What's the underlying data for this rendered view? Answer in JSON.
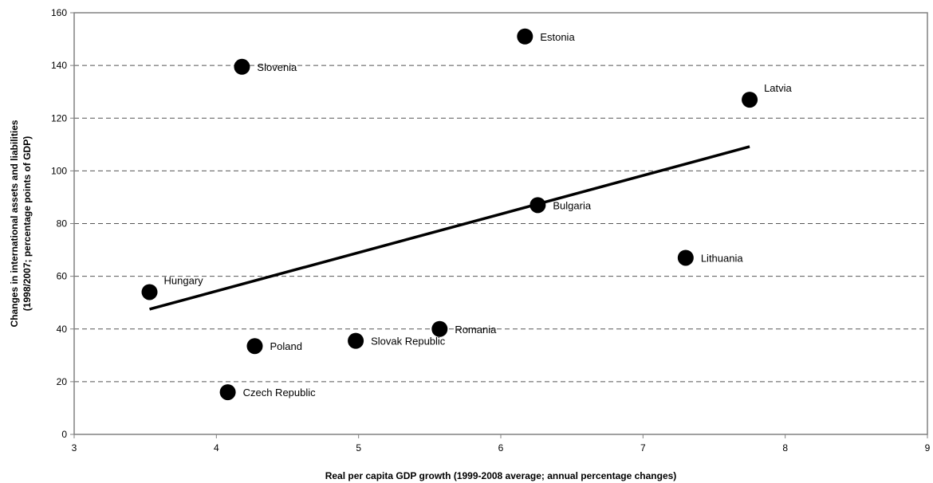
{
  "chart_data": {
    "type": "scatter",
    "title": "",
    "xlabel": "Real per capita GDP growth (1999-2008 average; annual percentage changes)",
    "ylabel_lines": [
      "Changes in international assets and liabilities",
      "(1998/2007; percentage points of GDP)"
    ],
    "xlim": [
      3,
      9
    ],
    "ylim": [
      0,
      160
    ],
    "xticks": [
      3,
      4,
      5,
      6,
      7,
      8,
      9
    ],
    "yticks": [
      0,
      20,
      40,
      60,
      80,
      100,
      120,
      140,
      160
    ],
    "grid": "horizontal-dashed",
    "colors": {
      "points": "#000000",
      "trend": "#000000",
      "grid": "#555555",
      "axis": "#808080"
    },
    "points": [
      {
        "name": "Hungary",
        "x": 3.53,
        "y": 54,
        "label_pos": "upper-right"
      },
      {
        "name": "Slovenia",
        "x": 4.18,
        "y": 139.5,
        "label_pos": "right"
      },
      {
        "name": "Czech Republic",
        "x": 4.08,
        "y": 16,
        "label_pos": "right"
      },
      {
        "name": "Poland",
        "x": 4.27,
        "y": 33.5,
        "label_pos": "right"
      },
      {
        "name": "Slovak Republic",
        "x": 4.98,
        "y": 35.5,
        "label_pos": "right"
      },
      {
        "name": "Romania",
        "x": 5.57,
        "y": 40,
        "label_pos": "right"
      },
      {
        "name": "Estonia",
        "x": 6.17,
        "y": 151,
        "label_pos": "right"
      },
      {
        "name": "Bulgaria",
        "x": 6.26,
        "y": 87,
        "label_pos": "right"
      },
      {
        "name": "Lithuania",
        "x": 7.3,
        "y": 67,
        "label_pos": "right"
      },
      {
        "name": "Latvia",
        "x": 7.75,
        "y": 127,
        "label_pos": "upper-right"
      }
    ],
    "trendline": {
      "x": [
        3.53,
        7.75
      ],
      "y": [
        47.5,
        109.2
      ]
    }
  }
}
